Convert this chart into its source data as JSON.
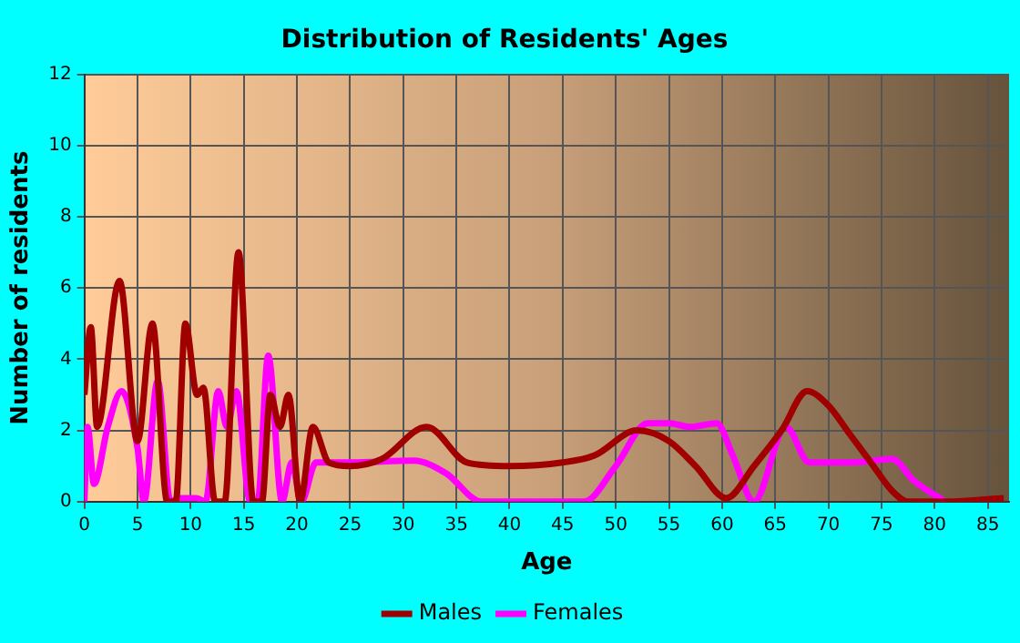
{
  "chart_data": {
    "type": "line",
    "title": "Distribution of Residents' Ages",
    "xlabel": "Age",
    "ylabel": "Number of residents",
    "xlim": [
      0,
      87
    ],
    "xticks": [
      0,
      5,
      10,
      15,
      20,
      25,
      30,
      35,
      40,
      45,
      50,
      55,
      60,
      65,
      70,
      75,
      80,
      85
    ],
    "ylim": [
      0,
      12
    ],
    "yticks": [
      0,
      2,
      4,
      6,
      8,
      10,
      12
    ],
    "grid": true,
    "legend": "bottom",
    "marker": "none",
    "line_style": "solid",
    "series": [
      {
        "name": "Males",
        "color": "#a00000",
        "x": [
          0,
          0.6,
          1.2,
          3.3,
          5,
          6.4,
          7.8,
          8.6,
          9.5,
          10.6,
          11.2,
          12.3,
          13.2,
          14.5,
          15.9,
          16.7,
          17.5,
          18.4,
          19.2,
          20.3,
          21.5,
          23,
          25,
          28,
          32.2,
          36,
          40,
          45,
          48,
          52,
          55,
          57.5,
          60.4,
          63,
          65.6,
          68,
          70,
          72,
          74,
          76,
          77.5,
          81,
          86.5
        ],
        "values": [
          3,
          4.9,
          2.1,
          6.2,
          1.7,
          5,
          0,
          0,
          5,
          3,
          3.2,
          0,
          0,
          7,
          0,
          0,
          3,
          2.1,
          3,
          0,
          2.1,
          1.1,
          1,
          1.2,
          2.1,
          1.1,
          1,
          1.1,
          1.3,
          2,
          1.7,
          1,
          0.1,
          1,
          2,
          3.1,
          2.7,
          1.9,
          1.1,
          0.3,
          0,
          0,
          0.1
        ]
      },
      {
        "name": "Females",
        "color": "#ff00ff",
        "x": [
          0,
          0.3,
          0.9,
          2.2,
          3.5,
          5,
          5.6,
          6.9,
          8.1,
          9,
          10.5,
          11.4,
          12.6,
          13.4,
          14.3,
          15.6,
          16.3,
          17.3,
          18.6,
          19.5,
          20.4,
          21.8,
          25,
          31,
          34,
          37.4,
          42,
          47,
          50,
          53,
          55,
          57,
          59.5,
          61,
          63,
          66,
          68.2,
          72.5,
          76,
          78,
          81
        ],
        "values": [
          0,
          2.1,
          0.5,
          2.1,
          3.1,
          1.5,
          0,
          3.4,
          0,
          0.1,
          0.1,
          0,
          3.1,
          2.1,
          3.1,
          0,
          0,
          4.1,
          0,
          1.1,
          0,
          1.1,
          1.1,
          1.15,
          0.8,
          0,
          0,
          0,
          1,
          2.2,
          2.2,
          2.1,
          2.2,
          1.3,
          0,
          2.1,
          1.1,
          1.1,
          1.2,
          0.6,
          0
        ]
      }
    ]
  }
}
